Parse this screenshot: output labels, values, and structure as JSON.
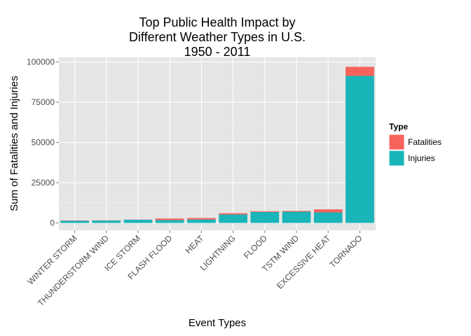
{
  "chart_data": {
    "type": "bar",
    "stacked": true,
    "title_lines": [
      "Top Public Health Impact by",
      "Different Weather Types in U.S.",
      "1950 - 2011"
    ],
    "xlabel": "Event Types",
    "ylabel": "Sum of Fatalities and Injuries",
    "ylim": [
      0,
      100000
    ],
    "yticks": [
      0,
      25000,
      50000,
      75000,
      100000
    ],
    "ytick_labels": [
      "0",
      "25000",
      "50000",
      "75000",
      "100000"
    ],
    "grid": true,
    "legend_placement": "right",
    "legend_title": "Type",
    "categories": [
      "WINTER STORM",
      "THUNDERSTORM WIND",
      "ICE STORM",
      "FLASH FLOOD",
      "HEAT",
      "LIGHTNING",
      "FLOOD",
      "TSTM WIND",
      "EXCESSIVE HEAT",
      "TORNADO"
    ],
    "series": [
      {
        "name": "Injuries",
        "color": "#19b5b9",
        "values": [
          1321,
          1488,
          1975,
          1777,
          2100,
          5230,
          6789,
          6957,
          6525,
          91346
        ]
      },
      {
        "name": "Fatalities",
        "color": "#f7635c",
        "values": [
          206,
          133,
          89,
          978,
          937,
          816,
          470,
          504,
          1903,
          5633
        ]
      }
    ]
  }
}
